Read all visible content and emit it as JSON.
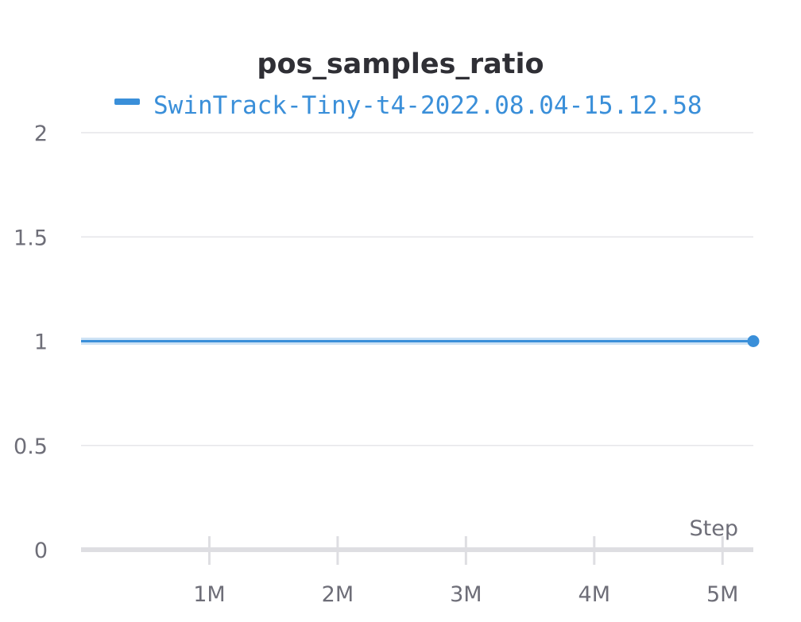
{
  "chart_data": {
    "type": "line",
    "title": "pos_samples_ratio",
    "xlabel": "Step",
    "ylabel": "",
    "xlim": [
      0,
      5240000
    ],
    "ylim": [
      0,
      2
    ],
    "x_ticks": [
      {
        "value": 1000000,
        "label": "1M"
      },
      {
        "value": 2000000,
        "label": "2M"
      },
      {
        "value": 3000000,
        "label": "3M"
      },
      {
        "value": 4000000,
        "label": "4M"
      },
      {
        "value": 5000000,
        "label": "5M"
      }
    ],
    "y_ticks": [
      {
        "value": 0,
        "label": "0"
      },
      {
        "value": 0.5,
        "label": "0.5"
      },
      {
        "value": 1,
        "label": "1"
      },
      {
        "value": 1.5,
        "label": "1.5"
      },
      {
        "value": 2,
        "label": "2"
      }
    ],
    "grid": true,
    "legend_position": "top",
    "series": [
      {
        "name": "SwinTrack-Tiny-t4-2022.08.04-15.12.58",
        "color": "#3a8fd9",
        "x": [
          0,
          1000000,
          2000000,
          3000000,
          4000000,
          5000000,
          5240000
        ],
        "y": [
          1,
          1,
          1,
          1,
          1,
          1,
          1
        ]
      }
    ]
  }
}
